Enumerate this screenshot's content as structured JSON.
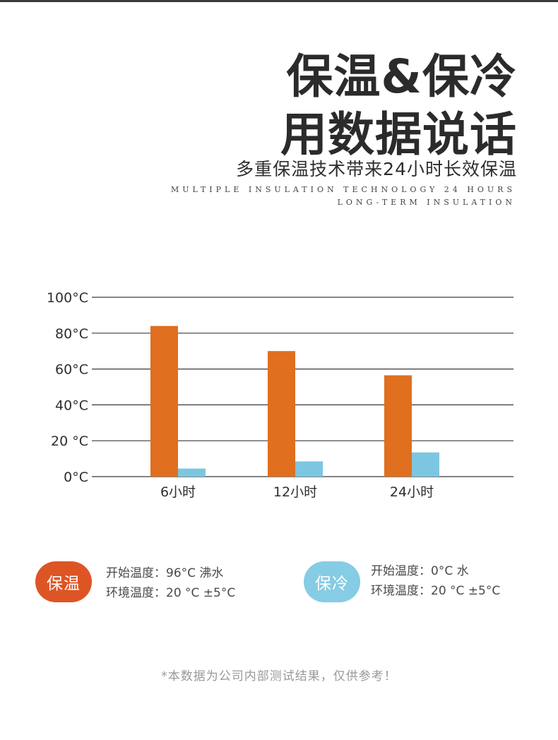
{
  "header": {
    "title_line1": "保温&保冷",
    "title_line2": "用数据说话",
    "subtitle": "多重保温技术带来24小时长效保温",
    "english_line1": "MULTIPLE INSULATION TECHNOLOGY 24 HOURS",
    "english_line2": "LONG-TERM INSULATION"
  },
  "colors": {
    "hot": "#e06f1f",
    "cold": "#7cc6e2",
    "hot_badge": "#de5525",
    "cold_badge": "#86cce5"
  },
  "chart_data": {
    "type": "bar",
    "title": "",
    "xlabel": "",
    "ylabel": "",
    "categories": [
      "6小时",
      "12小时",
      "24小时"
    ],
    "series": [
      {
        "values": [
          84,
          70,
          56.5
        ],
        "color": "#e06f1f"
      },
      {
        "values": [
          4.5,
          8.5,
          13.5
        ],
        "color": "#7cc6e2"
      }
    ],
    "ylim": [
      0,
      100
    ],
    "yticks": [
      {
        "value": 0,
        "label": "0°C"
      },
      {
        "value": 20,
        "label": "20 °C"
      },
      {
        "value": 40,
        "label": "40°C"
      },
      {
        "value": 60,
        "label": "60°C"
      },
      {
        "value": 80,
        "label": "80°C"
      },
      {
        "value": 100,
        "label": "100°C"
      }
    ],
    "grid": true,
    "legend": "none"
  },
  "legend_info": {
    "hot": {
      "badge": "保温",
      "start_temp": "开始温度：96°C 沸水",
      "env_temp": "环境温度：20 °C ±5°C"
    },
    "cold": {
      "badge": "保冷",
      "start_temp": "开始温度：0°C 水",
      "env_temp": "环境温度：20 °C ±5°C"
    }
  },
  "footnote": "*本数据为公司内部测试结果，仅供参考！"
}
